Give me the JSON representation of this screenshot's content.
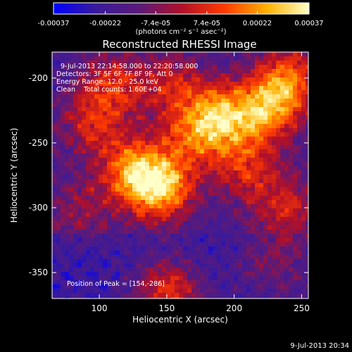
{
  "colorbar": {
    "tick_labels": [
      "-0.00037",
      "-0.00022",
      "-7.4e-05",
      "7.4e-05",
      "0.00022",
      "0.00037"
    ],
    "tick_values": [
      -0.00037,
      -0.00022,
      -7.4e-05,
      7.4e-05,
      0.00022,
      0.00037
    ],
    "range": [
      -0.00037,
      0.00037
    ],
    "unit_label": "(photons cm⁻² s⁻¹ asec⁻²)",
    "colors": [
      "#0000ff",
      "#3a1a9a",
      "#5a1a7a",
      "#b0102a",
      "#ff3a00",
      "#ffb000",
      "#ffffc8"
    ]
  },
  "chart_data": {
    "type": "heatmap",
    "title": "Reconstructed RHESSI Image",
    "xlabel": "Heliocentric X (arcsec)",
    "ylabel": "Heliocentric Y (arcsec)",
    "xlim": [
      65,
      255
    ],
    "ylim": [
      -370,
      -180
    ],
    "x_ticks": [
      "100",
      "150",
      "200",
      "250"
    ],
    "x_tick_values": [
      100,
      150,
      200,
      250
    ],
    "y_ticks": [
      "-200",
      "-250",
      "-300",
      "-350"
    ],
    "y_tick_values": [
      -200,
      -250,
      -300,
      -350
    ],
    "grid": false,
    "annotations": {
      "time": "9-Jul-2013 22:14:58.000 to 22:20:58.000",
      "detectors": "Detectors: 3F 5F 6F 7F 8F 9F, Att 0",
      "energy": "Energy Range: 12.0 - 25.0 keV",
      "clean": "Clean    Total counts: 1.60E+04",
      "peak": "Position of Peak = [154,-286]"
    },
    "peak": [
      154,
      -286
    ],
    "sources": [
      {
        "x": 145,
        "y": -285,
        "amp": 1.0
      },
      {
        "x": 125,
        "y": -270,
        "amp": 0.75
      },
      {
        "x": 190,
        "y": -230,
        "amp": 0.85
      },
      {
        "x": 225,
        "y": -225,
        "amp": 0.8
      },
      {
        "x": 240,
        "y": -200,
        "amp": 0.7
      },
      {
        "x": 170,
        "y": -245,
        "amp": 0.55
      },
      {
        "x": 95,
        "y": -235,
        "amp": 0.5
      },
      {
        "x": 110,
        "y": -205,
        "amp": 0.55
      },
      {
        "x": 155,
        "y": -205,
        "amp": 0.5
      },
      {
        "x": 210,
        "y": -270,
        "amp": 0.55
      },
      {
        "x": 240,
        "y": -300,
        "amp": 0.5
      },
      {
        "x": 150,
        "y": -365,
        "amp": 0.7
      },
      {
        "x": 85,
        "y": -300,
        "amp": 0.35
      },
      {
        "x": 225,
        "y": -345,
        "amp": 0.3
      }
    ]
  },
  "footer": {
    "timestamp": "9-Jul-2013 20:34"
  }
}
